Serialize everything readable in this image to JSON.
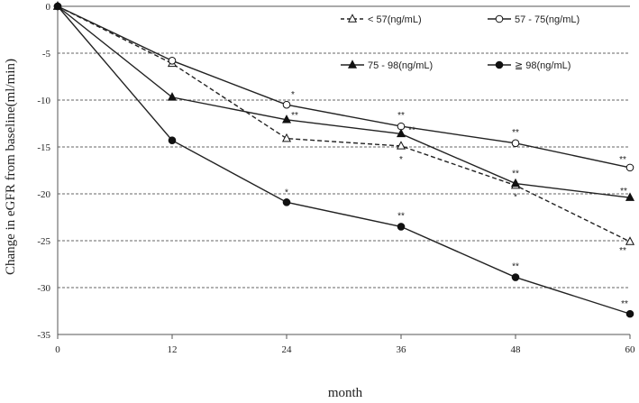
{
  "chart_data": {
    "type": "line",
    "xlabel": "month",
    "ylabel": "Change in eGFR from baseline(ml/min)",
    "x": [
      0,
      12,
      24,
      36,
      48,
      60
    ],
    "xlim": [
      0,
      60
    ],
    "ylim": [
      -35,
      0
    ],
    "x_ticks": [
      "0",
      "12",
      "24",
      "36",
      "48",
      "60"
    ],
    "y_ticks": [
      "0",
      "-5",
      "-10",
      "-15",
      "-20",
      "-25",
      "-30",
      "-35"
    ],
    "grid": "horizontal dashed",
    "legend_position": "top-right",
    "series": [
      {
        "name": "< 57(ng/mL)",
        "marker": "open-triangle",
        "line": "dashed",
        "values": [
          0,
          -6.1,
          -14.1,
          -14.9,
          -19.1,
          -25.1
        ],
        "annotations": [
          "",
          "",
          "",
          "*",
          "*",
          "**"
        ]
      },
      {
        "name": "57 - 75(ng/mL)",
        "marker": "open-circle",
        "line": "solid",
        "values": [
          0,
          -5.8,
          -10.5,
          -12.8,
          -14.6,
          -17.2
        ],
        "annotations": [
          "",
          "",
          "*",
          "**",
          "**",
          "**"
        ]
      },
      {
        "name": "75 - 98(ng/mL)",
        "marker": "filled-triangle",
        "line": "solid",
        "values": [
          0,
          -9.7,
          -12.1,
          -13.6,
          -18.9,
          -20.4
        ],
        "annotations": [
          "",
          "",
          "**",
          "**",
          "**",
          "**"
        ]
      },
      {
        "name": "≧ 98(ng/mL)",
        "marker": "filled-circle",
        "line": "solid",
        "values": [
          0,
          -14.3,
          -20.9,
          -23.5,
          -28.9,
          -32.8
        ],
        "annotations": [
          "",
          "",
          "*",
          "**",
          "**",
          "**"
        ]
      }
    ]
  }
}
